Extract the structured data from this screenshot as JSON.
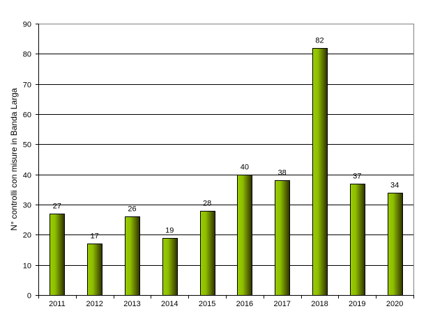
{
  "chart_data": {
    "type": "bar",
    "title": "",
    "xlabel": "",
    "ylabel": "N° controlli con misure in Banda Larga",
    "categories": [
      "2011",
      "2012",
      "2013",
      "2014",
      "2015",
      "2016",
      "2017",
      "2018",
      "2019",
      "2020"
    ],
    "values": [
      27,
      17,
      26,
      19,
      28,
      40,
      38,
      82,
      37,
      34
    ],
    "data_labels": [
      "27",
      "17",
      "26",
      "19",
      "28",
      "40",
      "38",
      "82",
      "37",
      "34"
    ],
    "ylim": [
      0,
      90
    ],
    "yticks": [
      0,
      10,
      20,
      30,
      40,
      50,
      60,
      70,
      80,
      90
    ],
    "grid": true,
    "legend": "none",
    "bar_color_light": "#99cc00",
    "bar_color_dark": "#333300"
  }
}
